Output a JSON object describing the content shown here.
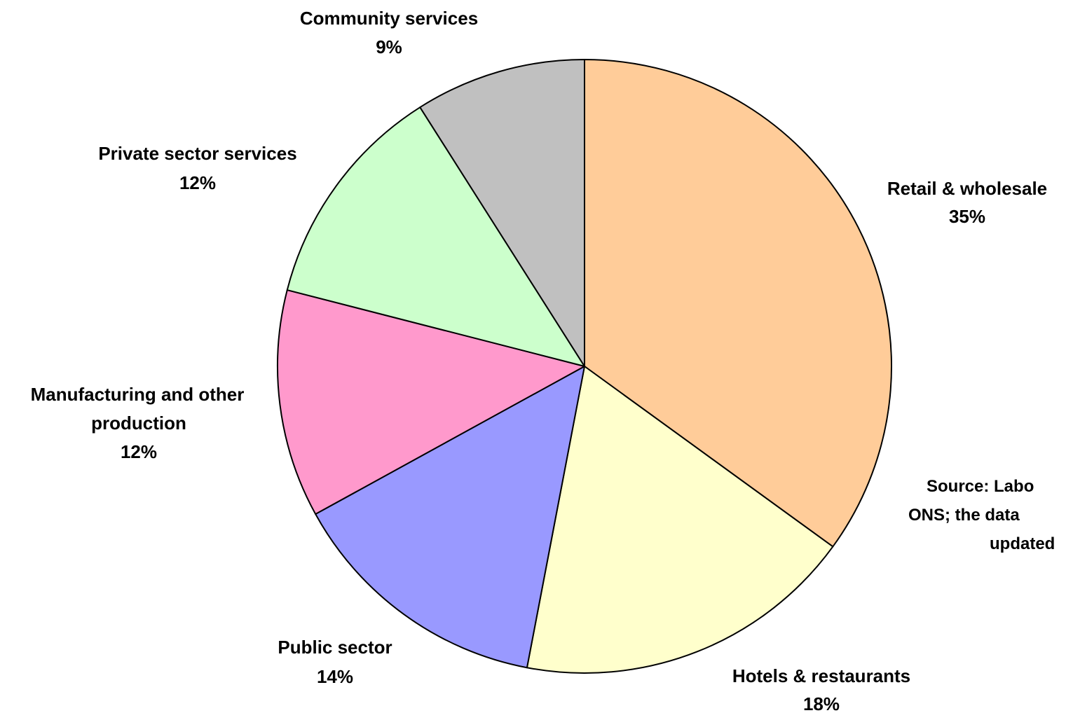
{
  "chart_data": {
    "type": "pie",
    "slices": [
      {
        "label": "Retail & wholesale",
        "percent_text": "35%",
        "value": 35,
        "color": "#ffcc99"
      },
      {
        "label": "Hotels & restaurants",
        "percent_text": "18%",
        "value": 18,
        "color": "#ffffcc"
      },
      {
        "label": "Public sector",
        "percent_text": "14%",
        "value": 14,
        "color": "#9999ff"
      },
      {
        "label": "Manufacturing and other production",
        "label_lines": [
          "Manufacturing and other",
          "production"
        ],
        "percent_text": "12%",
        "value": 12,
        "color": "#ff99cc"
      },
      {
        "label": "Private sector services",
        "percent_text": "12%",
        "value": 12,
        "color": "#ccffcc"
      },
      {
        "label": "Community services",
        "percent_text": "9%",
        "value": 9,
        "color": "#c0c0c0"
      }
    ],
    "start_angle": "12 o'clock",
    "direction": "clockwise",
    "border_color": "#000000",
    "legend": "none"
  },
  "source_note": {
    "lines": [
      "Source: Labo",
      "ONS; the data",
      "updated"
    ]
  }
}
